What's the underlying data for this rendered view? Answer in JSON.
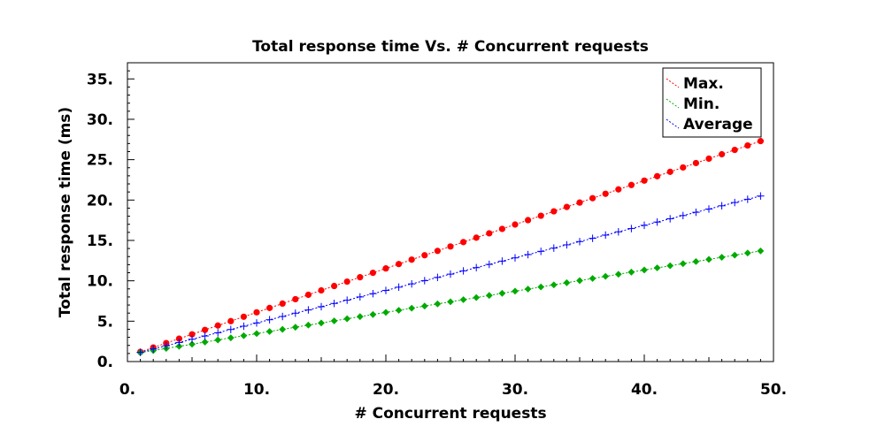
{
  "chart_data": {
    "type": "line",
    "title": "Total response time Vs. # Concurrent requests",
    "xlabel": "# Concurrent requests",
    "ylabel": "Total response time (ms)",
    "xlim": [
      0,
      50
    ],
    "ylim": [
      0,
      37
    ],
    "xticks": [
      0,
      10,
      20,
      30,
      40,
      50
    ],
    "xtick_labels": [
      "0.",
      "10.",
      "20.",
      "30.",
      "40.",
      "50."
    ],
    "yticks": [
      0,
      5,
      10,
      15,
      20,
      25,
      30,
      35
    ],
    "ytick_labels": [
      "0.",
      "5.",
      "10.",
      "15.",
      "20.",
      "25.",
      "30.",
      "35."
    ],
    "grid": false,
    "legend_position": "top-right",
    "x": [
      1,
      49
    ],
    "series": [
      {
        "name": "Max.",
        "color": "#ff0000",
        "marker": "circle",
        "start": 1.2,
        "end": 27.3
      },
      {
        "name": "Min.",
        "color": "#00aa00",
        "marker": "diamond",
        "start": 1.1,
        "end": 13.7
      },
      {
        "name": "Average",
        "color": "#0000ff",
        "marker": "plus",
        "start": 1.15,
        "end": 20.5
      }
    ]
  }
}
